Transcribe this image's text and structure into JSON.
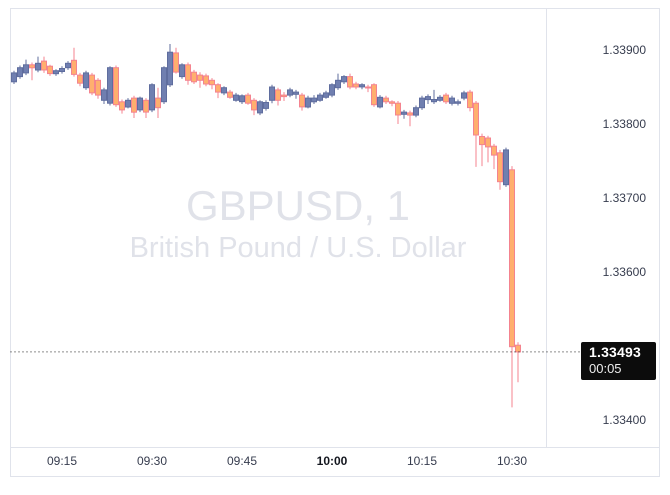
{
  "watermark": {
    "symbol_text": "GBPUSD, 1",
    "name_text": "British Pound / U.S. Dollar"
  },
  "price_label": {
    "price": "1.33493",
    "countdown": "00:05"
  },
  "chart_data": {
    "type": "candlestick",
    "title": "GBPUSD, 1",
    "subtitle": "British Pound / U.S. Dollar",
    "interval_minutes": 1,
    "last_price": 1.33493,
    "countdown": "00:05",
    "ylim": [
      1.33364,
      1.33958
    ],
    "grid": false,
    "y_axis": {
      "ticks": [
        {
          "label": "1.33900",
          "value": 1.339
        },
        {
          "label": "1.33800",
          "value": 1.338
        },
        {
          "label": "1.33700",
          "value": 1.337
        },
        {
          "label": "1.33600",
          "value": 1.336
        },
        {
          "label": "1.33400",
          "value": 1.334
        }
      ]
    },
    "x_axis": {
      "ticks": [
        {
          "label": "09:15",
          "bold": false
        },
        {
          "label": "09:30",
          "bold": false
        },
        {
          "label": "09:45",
          "bold": false
        },
        {
          "label": "10:00",
          "bold": true
        },
        {
          "label": "10:15",
          "bold": false
        },
        {
          "label": "10:30",
          "bold": false
        }
      ]
    },
    "colors": {
      "up_fill": "#707fb0",
      "up_border": "#5f6d9e",
      "up_wick": "#5f6d9e",
      "down_fill": "#ffaf6e",
      "down_border": "#f4838f",
      "down_wick": "#f4838f",
      "frame": "#e0e3eb",
      "axis_text": "#363c4e",
      "watermark": "#e0e2e9",
      "price_line": "#1c1c1c",
      "label_bg": "#0c0c0c",
      "label_fg": "#ffffff"
    },
    "candles": [
      [
        "09:07",
        1.33858,
        1.33873,
        1.33855,
        1.3387
      ],
      [
        "09:08",
        1.33865,
        1.3388,
        1.33862,
        1.33877
      ],
      [
        "09:09",
        1.3387,
        1.33888,
        1.33867,
        1.33881
      ],
      [
        "09:10",
        1.33881,
        1.33884,
        1.3386,
        1.33877
      ],
      [
        "09:11",
        1.33874,
        1.33892,
        1.33871,
        1.33883
      ],
      [
        "09:12",
        1.33886,
        1.33892,
        1.3387,
        1.33874
      ],
      [
        "09:13",
        1.33879,
        1.33881,
        1.33866,
        1.33869
      ],
      [
        "09:14",
        1.33869,
        1.33875,
        1.33866,
        1.33873
      ],
      [
        "09:15",
        1.33872,
        1.33879,
        1.33869,
        1.33876
      ],
      [
        "09:16",
        1.33877,
        1.33886,
        1.33874,
        1.33883
      ],
      [
        "09:17",
        1.33887,
        1.33904,
        1.33865,
        1.33868
      ],
      [
        "09:18",
        1.33867,
        1.3387,
        1.33852,
        1.33856
      ],
      [
        "09:19",
        1.3385,
        1.33873,
        1.33847,
        1.3387
      ],
      [
        "09:20",
        1.33867,
        1.3387,
        1.3384,
        1.33843
      ],
      [
        "09:21",
        1.3386,
        1.33863,
        1.33835,
        1.3384
      ],
      [
        "09:22",
        1.33833,
        1.3385,
        1.33828,
        1.33847
      ],
      [
        "09:23",
        1.33829,
        1.33879,
        1.33826,
        1.33877
      ],
      [
        "09:24",
        1.33877,
        1.3388,
        1.33824,
        1.33827
      ],
      [
        "09:25",
        1.33831,
        1.33834,
        1.33815,
        1.3382
      ],
      [
        "09:26",
        1.33824,
        1.33836,
        1.33822,
        1.33833
      ],
      [
        "09:27",
        1.33836,
        1.33839,
        1.33809,
        1.33817
      ],
      [
        "09:28",
        1.3382,
        1.33838,
        1.33817,
        1.33836
      ],
      [
        "09:29",
        1.33833,
        1.33836,
        1.33809,
        1.33817
      ],
      [
        "09:30",
        1.3382,
        1.33856,
        1.33817,
        1.33854
      ],
      [
        "09:31",
        1.33836,
        1.3385,
        1.33809,
        1.33823
      ],
      [
        "09:32",
        1.33831,
        1.33879,
        1.33828,
        1.33877
      ],
      [
        "09:33",
        1.33854,
        1.33909,
        1.33851,
        1.33898
      ],
      [
        "09:34",
        1.33897,
        1.33904,
        1.33869,
        1.33871
      ],
      [
        "09:35",
        1.33865,
        1.33883,
        1.33862,
        1.33881
      ],
      [
        "09:36",
        1.33881,
        1.33884,
        1.33854,
        1.3386
      ],
      [
        "09:37",
        1.33871,
        1.33874,
        1.33855,
        1.33858
      ],
      [
        "09:38",
        1.33867,
        1.33871,
        1.3385,
        1.3386
      ],
      [
        "09:39",
        1.33866,
        1.33869,
        1.33852,
        1.33855
      ],
      [
        "09:40",
        1.3386,
        1.33863,
        1.33848,
        1.33854
      ],
      [
        "09:41",
        1.33854,
        1.33856,
        1.33836,
        1.33844
      ],
      [
        "09:42",
        1.33843,
        1.33852,
        1.3384,
        1.3385
      ],
      [
        "09:43",
        1.33844,
        1.33847,
        1.33835,
        1.33837
      ],
      [
        "09:44",
        1.33833,
        1.33843,
        1.33831,
        1.3384
      ],
      [
        "09:45",
        1.33831,
        1.33841,
        1.33828,
        1.33839
      ],
      [
        "09:46",
        1.3384,
        1.33843,
        1.33827,
        1.33829
      ],
      [
        "09:47",
        1.33833,
        1.33836,
        1.33813,
        1.3382
      ],
      [
        "09:48",
        1.33816,
        1.33833,
        1.33813,
        1.33831
      ],
      [
        "09:49",
        1.33822,
        1.33833,
        1.33819,
        1.3383
      ],
      [
        "09:50",
        1.33833,
        1.33854,
        1.33829,
        1.33851
      ],
      [
        "09:51",
        1.33847,
        1.3385,
        1.33826,
        1.33833
      ],
      [
        "09:52",
        1.3384,
        1.33844,
        1.33832,
        1.33838
      ],
      [
        "09:53",
        1.3384,
        1.3385,
        1.33837,
        1.33847
      ],
      [
        "09:54",
        1.33841,
        1.33847,
        1.33835,
        1.33844
      ],
      [
        "09:55",
        1.3384,
        1.33843,
        1.33819,
        1.33824
      ],
      [
        "09:56",
        1.33824,
        1.33839,
        1.33822,
        1.33836
      ],
      [
        "09:57",
        1.33831,
        1.3384,
        1.33828,
        1.33836
      ],
      [
        "09:58",
        1.33833,
        1.33843,
        1.33831,
        1.3384
      ],
      [
        "09:59",
        1.33837,
        1.33846,
        1.33835,
        1.33843
      ],
      [
        "10:00",
        1.3384,
        1.33856,
        1.33837,
        1.33854
      ],
      [
        "10:01",
        1.3385,
        1.33869,
        1.33847,
        1.3386
      ],
      [
        "10:02",
        1.33858,
        1.33867,
        1.33855,
        1.33865
      ],
      [
        "10:03",
        1.33865,
        1.33869,
        1.33848,
        1.33851
      ],
      [
        "10:04",
        1.33855,
        1.33858,
        1.33848,
        1.33851
      ],
      [
        "10:05",
        1.33851,
        1.33856,
        1.33848,
        1.33854
      ],
      [
        "10:06",
        1.33851,
        1.33854,
        1.33844,
        1.3385
      ],
      [
        "10:07",
        1.33854,
        1.33856,
        1.33824,
        1.33827
      ],
      [
        "10:08",
        1.33824,
        1.3384,
        1.33822,
        1.33837
      ],
      [
        "10:09",
        1.33836,
        1.33839,
        1.33828,
        1.33831
      ],
      [
        "10:10",
        1.33831,
        1.33833,
        1.33825,
        1.33829
      ],
      [
        "10:11",
        1.33829,
        1.33832,
        1.33801,
        1.33813
      ],
      [
        "10:12",
        1.33814,
        1.3382,
        1.33808,
        1.33817
      ],
      [
        "10:13",
        1.33816,
        1.33819,
        1.33798,
        1.33813
      ],
      [
        "10:14",
        1.33813,
        1.33826,
        1.3381,
        1.33823
      ],
      [
        "10:15",
        1.33823,
        1.33839,
        1.3382,
        1.33836
      ],
      [
        "10:16",
        1.33834,
        1.33841,
        1.33828,
        1.33838
      ],
      [
        "10:17",
        1.33831,
        1.33847,
        1.33828,
        1.33834
      ],
      [
        "10:18",
        1.33833,
        1.3384,
        1.33831,
        1.33837
      ],
      [
        "10:19",
        1.3384,
        1.33843,
        1.33828,
        1.33831
      ],
      [
        "10:20",
        1.33829,
        1.33839,
        1.33826,
        1.33836
      ],
      [
        "10:21",
        1.33829,
        1.33834,
        1.33826,
        1.33831
      ],
      [
        "10:22",
        1.33836,
        1.33846,
        1.33833,
        1.33843
      ],
      [
        "10:23",
        1.33844,
        1.33847,
        1.33818,
        1.33823
      ],
      [
        "10:24",
        1.33829,
        1.33832,
        1.33743,
        1.33786
      ],
      [
        "10:25",
        1.33784,
        1.33788,
        1.33744,
        1.33773
      ],
      [
        "10:26",
        1.33782,
        1.33785,
        1.33749,
        1.3377
      ],
      [
        "10:27",
        1.33771,
        1.33774,
        1.3374,
        1.33759
      ],
      [
        "10:28",
        1.33762,
        1.33766,
        1.33712,
        1.33723
      ],
      [
        "10:29",
        1.33719,
        1.33769,
        1.33716,
        1.33766
      ],
      [
        "10:30",
        1.33739,
        1.33744,
        1.33418,
        1.335
      ],
      [
        "10:31",
        1.33502,
        1.33506,
        1.33452,
        1.33493
      ]
    ]
  }
}
